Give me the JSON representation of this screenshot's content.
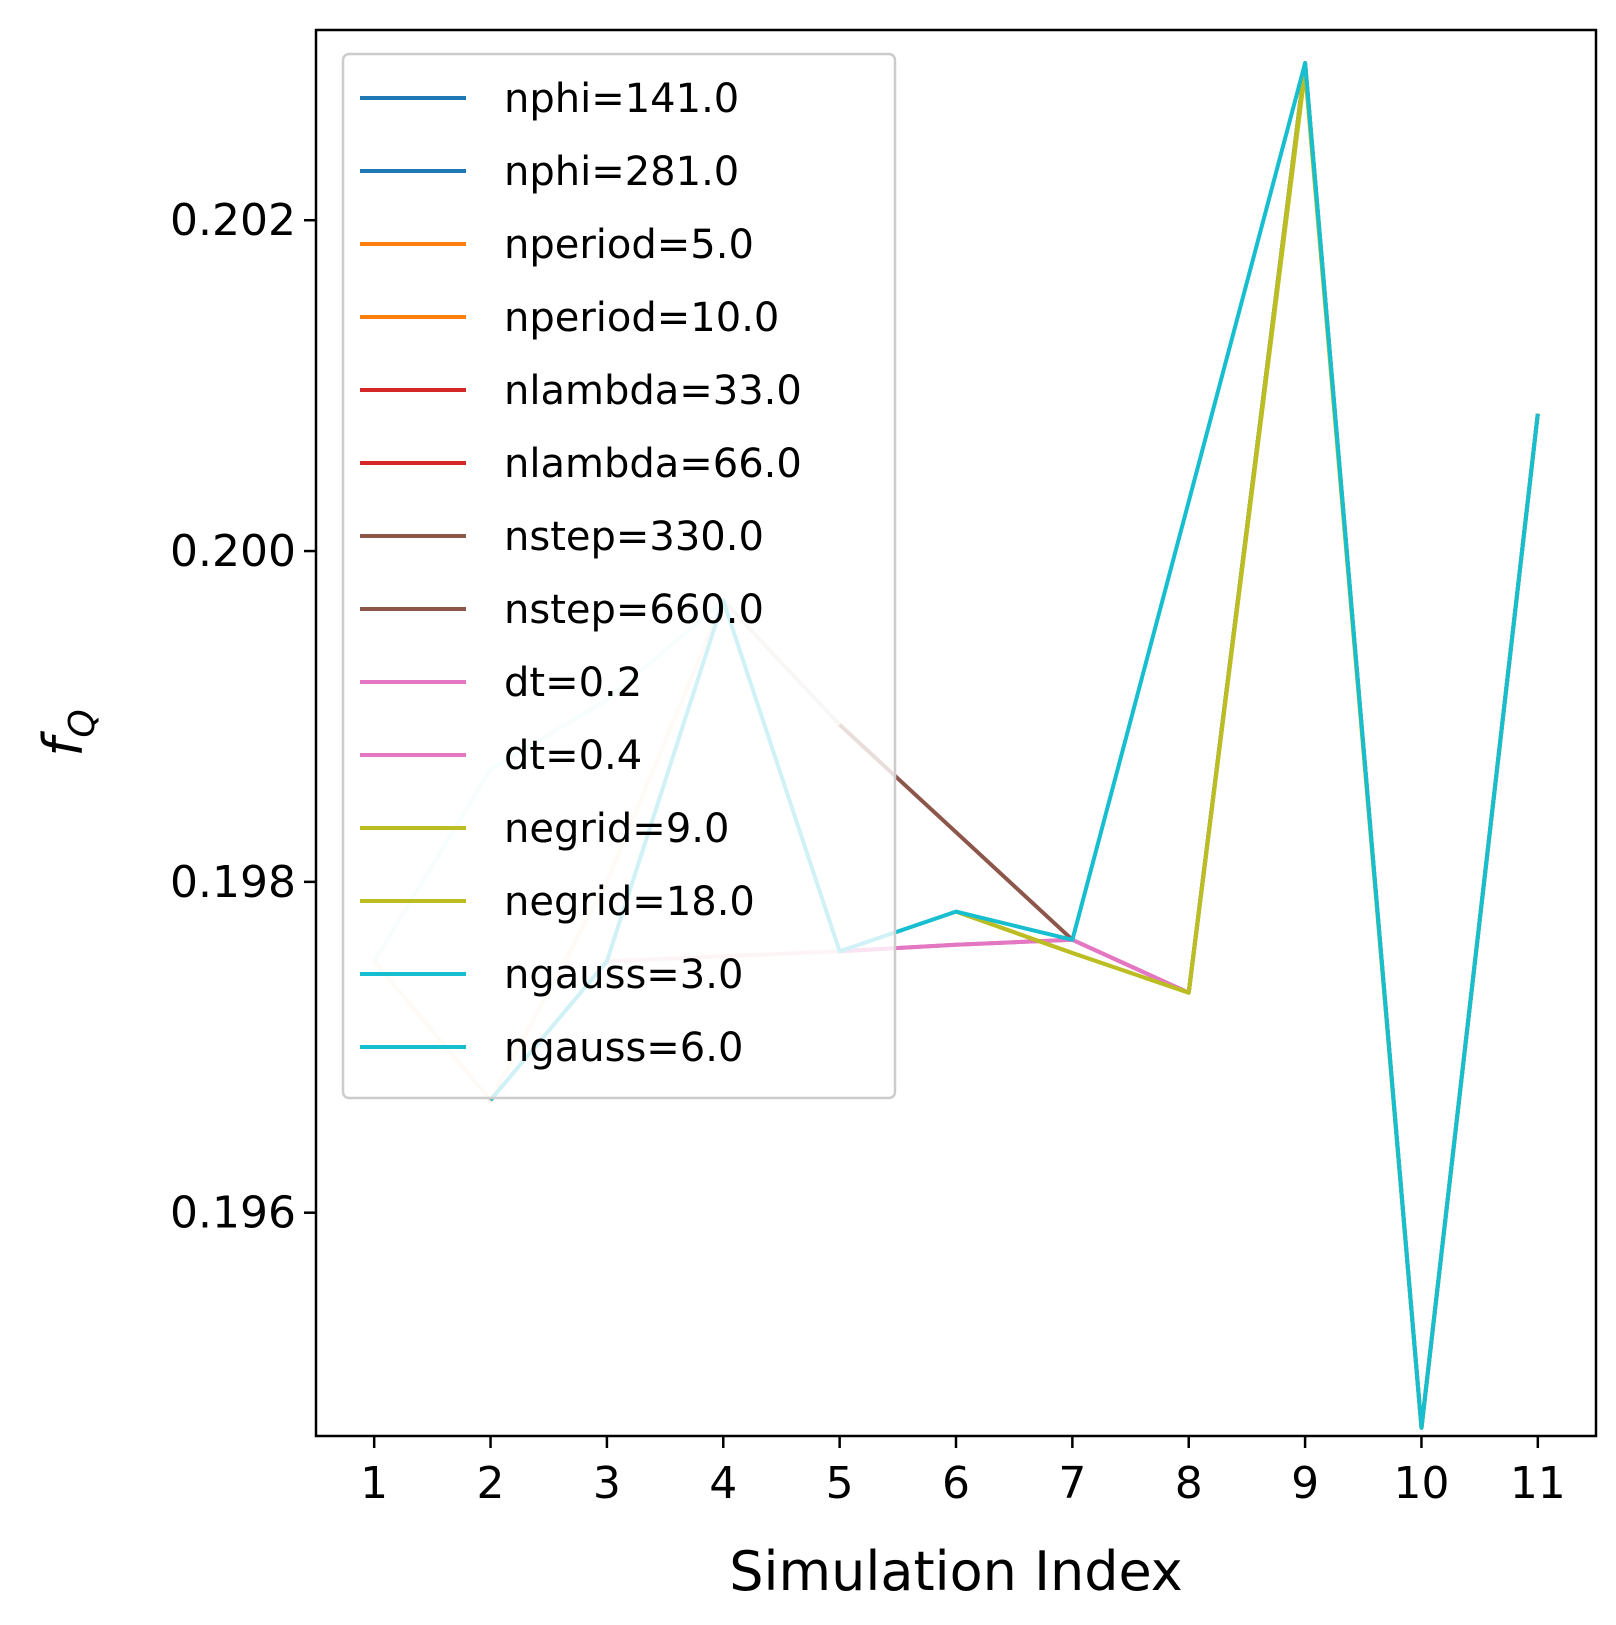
{
  "chart_data": {
    "type": "line",
    "xlabel": "Simulation Index",
    "ylabel": "f",
    "ylabel_subscript": "Q",
    "x": [
      1,
      2,
      3,
      4,
      5,
      6,
      7,
      8,
      9,
      10,
      11
    ],
    "xticks": [
      "1",
      "2",
      "3",
      "4",
      "5",
      "6",
      "7",
      "8",
      "9",
      "10",
      "11"
    ],
    "yticks": [
      0.196,
      0.198,
      0.2,
      0.202
    ],
    "ytick_labels": [
      "0.196",
      "0.198",
      "0.200",
      "0.202"
    ],
    "xlim": [
      0.5,
      11.5
    ],
    "ylim": [
      0.19465,
      0.20315
    ],
    "grid": false,
    "legend_position": "upper-left",
    "series": [
      {
        "name": "nphi=141.0",
        "color": "#1f77b4",
        "alpha": 1.0,
        "points": [
          [
            8,
            0.19733
          ],
          [
            9,
            0.20295
          ],
          [
            10,
            0.1947
          ],
          [
            11,
            0.20083
          ]
        ]
      },
      {
        "name": "nphi=281.0",
        "color": "#1f77b4",
        "alpha": 1.0,
        "points": [
          [
            8,
            0.19733
          ],
          [
            9,
            0.20295
          ],
          [
            10,
            0.1947
          ],
          [
            11,
            0.20083
          ]
        ]
      },
      {
        "name": "nperiod=5.0",
        "color": "#ff7f0e",
        "alpha": 0.2,
        "points": [
          [
            1,
            0.19752
          ],
          [
            2,
            0.19668
          ],
          [
            3,
            0.19752
          ],
          [
            4,
            0.1997
          ]
        ]
      },
      {
        "name": "nperiod=10.0",
        "color": "#ff7f0e",
        "alpha": 0.2,
        "points": [
          [
            2,
            0.19668
          ],
          [
            3,
            0.198
          ],
          [
            4,
            0.1997
          ]
        ]
      },
      {
        "name": "nlambda=33.0",
        "color": "#d62728",
        "alpha": 0.12,
        "points": [
          [
            3,
            0.19752
          ],
          [
            4,
            0.19755
          ],
          [
            5,
            0.19758
          ]
        ]
      },
      {
        "name": "nlambda=66.0",
        "color": "#d62728",
        "alpha": 0.12,
        "points": [
          [
            3,
            0.19752
          ],
          [
            4,
            0.19755
          ],
          [
            5,
            0.19758
          ]
        ]
      },
      {
        "name": "nstep=330.0",
        "color": "#8c564b",
        "alpha": 0.25,
        "points": [
          [
            4,
            0.1997
          ],
          [
            5,
            0.19895
          ]
        ]
      },
      {
        "name": "nstep=660.0",
        "color": "#8c564b",
        "alpha": 1.0,
        "points": [
          [
            5,
            0.19895
          ],
          [
            6,
            0.1983
          ],
          [
            7,
            0.19765
          ]
        ]
      },
      {
        "name": "dt=0.2",
        "color": "#e377c2",
        "alpha": 1.0,
        "points": [
          [
            5,
            0.19758
          ],
          [
            6,
            0.19762
          ],
          [
            7,
            0.19765
          ],
          [
            8,
            0.19733
          ]
        ]
      },
      {
        "name": "dt=0.4",
        "color": "#e377c2",
        "alpha": 1.0,
        "points": [
          [
            5,
            0.19758
          ],
          [
            6,
            0.19762
          ],
          [
            7,
            0.19765
          ],
          [
            8,
            0.19733
          ]
        ]
      },
      {
        "name": "negrid=9.0",
        "color": "#bcbd22",
        "alpha": 1.0,
        "points": [
          [
            6,
            0.19782
          ],
          [
            7,
            0.19757
          ],
          [
            8,
            0.19733
          ],
          [
            9,
            0.20295
          ],
          [
            10,
            0.1947
          ],
          [
            11,
            0.20083
          ]
        ]
      },
      {
        "name": "negrid=18.0",
        "color": "#bcbd22",
        "alpha": 1.0,
        "points": [
          [
            6,
            0.19782
          ],
          [
            7,
            0.19757
          ],
          [
            8,
            0.19733
          ],
          [
            9,
            0.2029
          ],
          [
            10,
            0.1947
          ],
          [
            11,
            0.20083
          ]
        ]
      },
      {
        "name": "ngauss=3.0",
        "color": "#17becf",
        "alpha": 0.18,
        "points": [
          [
            1,
            0.19752
          ],
          [
            2,
            0.19868
          ],
          [
            3,
            0.1991
          ],
          [
            4,
            0.1997
          ],
          [
            5,
            0.19758
          ],
          [
            6,
            0.19782
          ]
        ]
      },
      {
        "name": "ngauss=6.0",
        "color": "#17becf",
        "alpha": 1.0,
        "points": [
          [
            2,
            0.19668
          ],
          [
            3,
            0.19752
          ],
          [
            4,
            0.1997
          ],
          [
            5,
            0.19758
          ],
          [
            6,
            0.19782
          ],
          [
            7,
            0.19765
          ],
          [
            9,
            0.20295
          ],
          [
            10,
            0.1947
          ],
          [
            11,
            0.20083
          ]
        ]
      }
    ]
  }
}
